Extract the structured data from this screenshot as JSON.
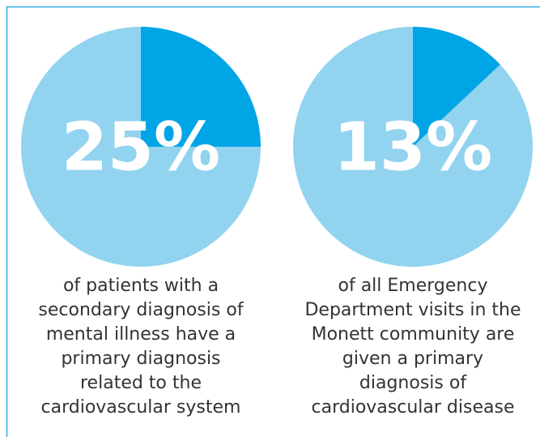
{
  "chart_data": [
    {
      "type": "pie",
      "values": [
        25,
        75
      ],
      "value_labels": [
        "25%",
        null
      ],
      "colors": [
        "#00a5e6",
        "#92d3ef"
      ],
      "caption": [
        "of patients with a",
        "secondary diagnosis of",
        "mental illness have a",
        "primary diagnosis",
        "related to the",
        "cardiovascular system"
      ]
    },
    {
      "type": "pie",
      "values": [
        13,
        87
      ],
      "value_labels": [
        "13%",
        null
      ],
      "colors": [
        "#00a5e6",
        "#92d3ef"
      ],
      "caption": [
        "of all Emergency",
        "Department visits in the",
        "Monett community are",
        "given a primary",
        "diagnosis of",
        "cardiovascular disease"
      ]
    }
  ]
}
